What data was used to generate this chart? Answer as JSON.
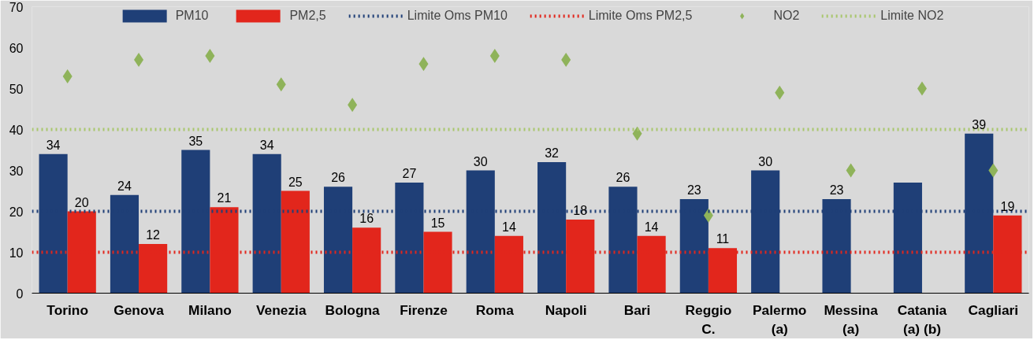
{
  "chart_data": {
    "type": "bar",
    "categories": [
      "Torino",
      "Genova",
      "Milano",
      "Venezia",
      "Bologna",
      "Firenze",
      "Roma",
      "Napoli",
      "Bari",
      "Reggio\nC.",
      "Palermo\n(a)",
      "Messina\n(a)",
      "Catania\n(a) (b)",
      "Cagliari"
    ],
    "series": [
      {
        "name": "PM10",
        "color": "#1f3f77",
        "values": [
          34,
          24,
          35,
          34,
          26,
          27,
          30,
          32,
          26,
          23,
          30,
          23,
          27,
          39
        ],
        "value_labels": [
          "34",
          "24",
          "35",
          "34",
          "26",
          "27",
          "30",
          "32",
          "26",
          "23",
          "30",
          "23",
          null,
          "39"
        ]
      },
      {
        "name": "PM2,5",
        "color": "#e2261c",
        "values": [
          20,
          12,
          21,
          25,
          16,
          15,
          14,
          18,
          14,
          11,
          null,
          null,
          null,
          19
        ],
        "value_labels": [
          "20",
          "12",
          "21",
          "25",
          "16",
          "15",
          "14",
          "18",
          "14",
          "11",
          null,
          null,
          null,
          "19"
        ]
      },
      {
        "name": "NO2",
        "type": "scatter",
        "marker": "diamond",
        "color": "#8fb35a",
        "values": [
          53,
          57,
          58,
          51,
          46,
          56,
          58,
          57,
          39,
          19,
          49,
          30,
          50,
          30
        ]
      }
    ],
    "ref_lines": [
      {
        "axis": "y",
        "value": 20,
        "label": "Limite Oms PM10",
        "color": "#1f3f77",
        "line_style": "dotted"
      },
      {
        "axis": "y",
        "value": 10,
        "label": "Limite Oms PM2,5",
        "color": "#e2261c",
        "line_style": "dotted"
      },
      {
        "axis": "y",
        "value": 40,
        "label": "Limite NO2",
        "color": "#a8c66c",
        "line_style": "dotted"
      }
    ],
    "ylim": [
      0,
      70
    ],
    "yticks": [
      0,
      10,
      20,
      30,
      40,
      50,
      60,
      70
    ],
    "grid": false,
    "legend": "top"
  }
}
